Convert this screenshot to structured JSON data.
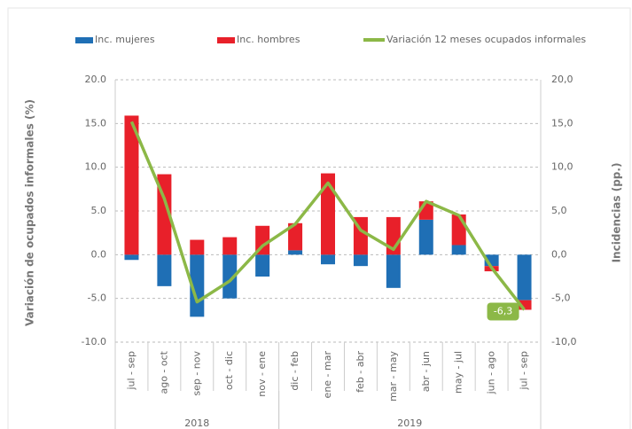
{
  "chart_data": {
    "type": "bar",
    "y_label": "Variación de ocupados informales (%)",
    "y2_label": "Incidencias (pp.)",
    "categories": [
      "jul - sep",
      "ago - oct",
      "sep - nov",
      "oct - dic",
      "nov - ene",
      "dic - feb",
      "ene - mar",
      "feb - abr",
      "mar - may",
      "abr - jun",
      "may - jul",
      "jun - ago",
      "jul - sep"
    ],
    "groups": [
      {
        "label": "2018",
        "start": 0,
        "end": 4
      },
      {
        "label": "2019",
        "start": 5,
        "end": 12
      }
    ],
    "series": [
      {
        "name": "Inc. mujeres",
        "type": "bar",
        "axis": "y2",
        "color": "#1f6fb5",
        "values": [
          -0.6,
          -3.6,
          -7.1,
          -5.0,
          -2.5,
          0.5,
          -1.1,
          -1.3,
          -3.8,
          4.0,
          1.1,
          -1.3,
          -5.2
        ]
      },
      {
        "name": "Inc. hombres",
        "type": "bar",
        "axis": "y2",
        "color": "#e8202a",
        "values": [
          15.9,
          9.2,
          1.7,
          2.0,
          3.3,
          3.1,
          9.3,
          4.3,
          4.3,
          2.1,
          3.5,
          -0.6,
          -1.1
        ]
      },
      {
        "name": "Variación 12 meses ocupados informales",
        "type": "line",
        "color": "#8cb847",
        "values": [
          15.2,
          6.4,
          -5.4,
          -3.0,
          1.0,
          3.5,
          8.2,
          2.8,
          0.6,
          6.1,
          4.5,
          -1.5,
          -6.3
        ],
        "value_labels": [
          null,
          null,
          null,
          null,
          null,
          null,
          null,
          null,
          null,
          null,
          null,
          null,
          "-6,3"
        ]
      }
    ],
    "ylim": [
      -10,
      20
    ],
    "yticks": [
      {
        "value": -10,
        "label": "-10.0"
      },
      {
        "value": -5,
        "label": "-5.0"
      },
      {
        "value": 0,
        "label": "0.0"
      },
      {
        "value": 5,
        "label": "5.0"
      },
      {
        "value": 10,
        "label": "10.0"
      },
      {
        "value": 15,
        "label": "15.0"
      },
      {
        "value": 20,
        "label": "20.0"
      }
    ],
    "y2lim": [
      -10,
      20
    ],
    "y2ticks": [
      {
        "value": -10,
        "label": "-10,0"
      },
      {
        "value": -5,
        "label": "-5,0"
      },
      {
        "value": 0,
        "label": "0,0"
      },
      {
        "value": 5,
        "label": "5,0"
      },
      {
        "value": 10,
        "label": "10,0"
      },
      {
        "value": 15,
        "label": "15,0"
      },
      {
        "value": 20,
        "label": "20,0"
      }
    ],
    "grid": true,
    "legend": "top"
  }
}
